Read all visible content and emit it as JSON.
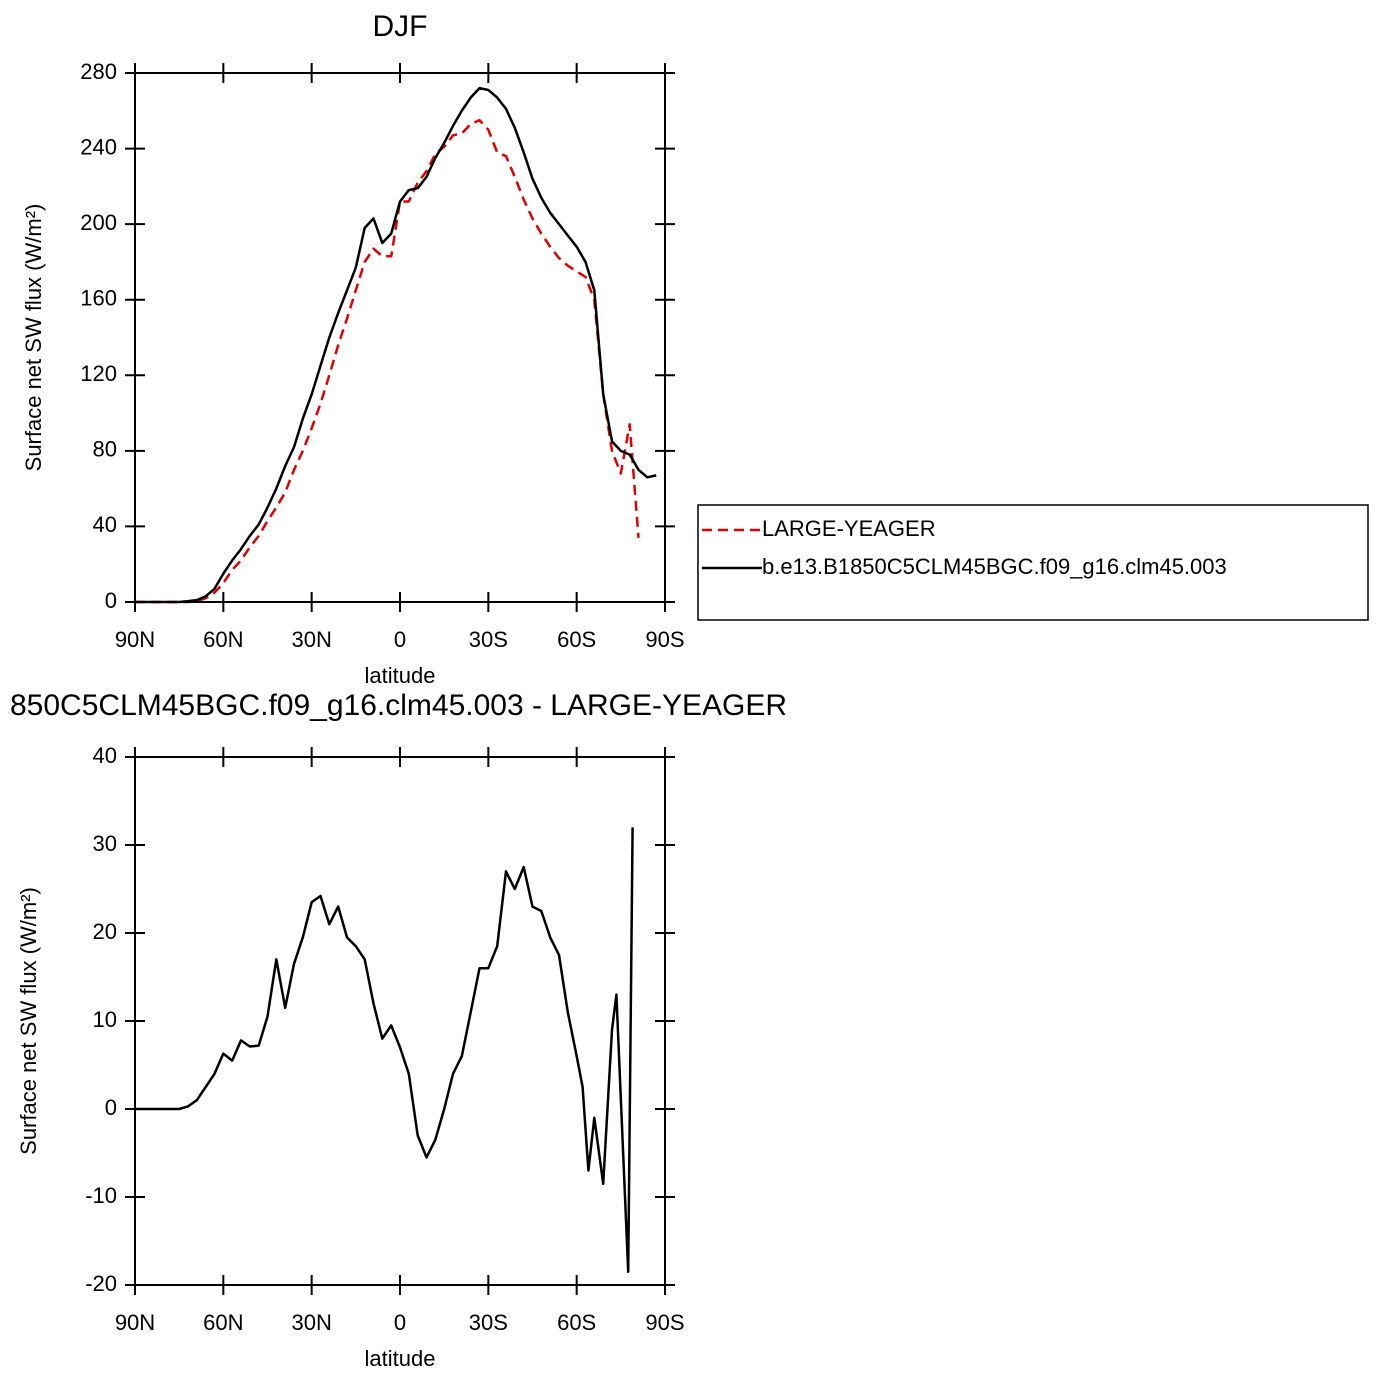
{
  "chart_data": [
    {
      "type": "line",
      "title": "DJF",
      "x_label": "latitude",
      "y_label": "Surface net SW flux (W/m²)",
      "x": [
        90,
        87,
        84,
        81,
        78,
        75,
        72,
        69,
        66,
        63,
        60,
        57,
        54,
        51,
        48,
        45,
        42,
        39,
        36,
        33,
        30,
        27,
        24,
        21,
        18,
        15,
        12,
        9,
        6,
        3,
        0,
        -3,
        -6,
        -9,
        -12,
        -15,
        -18,
        -21,
        -24,
        -27,
        -30,
        -33,
        -36,
        -39,
        -42,
        -45,
        -48,
        -51,
        -54,
        -57,
        -60,
        -63,
        -66,
        -69,
        -72,
        -75,
        -78,
        -81,
        -84,
        -87
      ],
      "series": [
        {
          "name": "LARGE-YEAGER",
          "color": "#e00000",
          "dash": true,
          "values": [
            0,
            0,
            0,
            0,
            0,
            0,
            0,
            0.5,
            2,
            5,
            10,
            17,
            22,
            29,
            35,
            43,
            50,
            58,
            70,
            80,
            92,
            105,
            120,
            136,
            150,
            165,
            180,
            187,
            183,
            183,
            212,
            212,
            222,
            228,
            237,
            241,
            247,
            248,
            253,
            255,
            250,
            238,
            236,
            225,
            213,
            203,
            195,
            188,
            182,
            178,
            175,
            172,
            160,
            110,
            80,
            68,
            94,
            34,
            null,
            null
          ]
        },
        {
          "name": "b.e13.B1850C5CLM45BGC.f09_g16.clm45.003",
          "color": "#000000",
          "dash": false,
          "values": [
            0,
            0,
            0,
            0,
            0,
            0,
            0.5,
            1,
            3,
            7,
            15,
            22,
            28,
            35,
            41,
            50,
            60,
            72,
            82,
            97,
            110,
            125,
            140,
            153,
            165,
            177,
            198,
            203,
            190,
            195,
            212,
            218,
            219,
            225,
            235,
            243,
            252,
            260,
            267,
            272,
            271,
            267,
            261,
            251,
            238,
            224,
            214,
            206,
            200,
            194,
            188,
            180,
            165,
            110,
            85,
            80,
            78,
            70,
            66,
            67
          ]
        }
      ],
      "xlim": [
        90,
        -90
      ],
      "xticks": [
        {
          "value": 90,
          "label": "90N"
        },
        {
          "value": 60,
          "label": "60N"
        },
        {
          "value": 30,
          "label": "30N"
        },
        0,
        {
          "value": -30,
          "label": "30S"
        },
        {
          "value": -60,
          "label": "60S"
        },
        {
          "value": -90,
          "label": "90S"
        }
      ],
      "ylim": [
        0,
        280
      ],
      "yticks": [
        0,
        40,
        80,
        120,
        160,
        200,
        240,
        280
      ],
      "legend": "outside-right"
    },
    {
      "type": "line",
      "title": "850C5CLM45BGC.f09_g16.clm45.003 - LARGE-YEAGER",
      "x_label": "latitude",
      "y_label": "Surface net SW flux (W/m²)",
      "x": [
        90,
        87,
        84,
        81,
        78,
        75,
        72,
        69,
        66,
        63,
        60,
        57,
        54,
        51,
        48,
        45,
        42,
        39,
        36,
        33,
        30,
        27,
        24,
        21,
        18,
        15,
        12,
        9,
        6,
        3,
        0,
        -3,
        -6,
        -9,
        -12,
        -15,
        -18,
        -21,
        -24,
        -27,
        -30,
        -33,
        -36,
        -39,
        -42,
        -45,
        -48,
        -51,
        -54,
        -57,
        -60,
        -62,
        -64,
        -66,
        -69,
        -72,
        -73.5,
        -77.5,
        -79
      ],
      "values": [
        0,
        0,
        0,
        0,
        0,
        0,
        0.3,
        1,
        2.5,
        4,
        6.3,
        5.5,
        7.8,
        7.1,
        7.2,
        10.5,
        17,
        11.5,
        16.5,
        19.5,
        23.5,
        24.2,
        21,
        23,
        19.5,
        18.5,
        17,
        12,
        8,
        9.5,
        7,
        4,
        -3,
        -5.5,
        -3.5,
        0,
        4,
        6,
        11,
        16,
        16,
        18.5,
        27,
        25,
        27.5,
        23,
        22.5,
        19.5,
        17.5,
        11,
        6,
        2.5,
        -7,
        -1,
        -8.5,
        9,
        13,
        -18.5,
        32
      ],
      "color": "#000000",
      "xlim": [
        90,
        -90
      ],
      "xticks": [
        {
          "value": 90,
          "label": "90N"
        },
        {
          "value": 60,
          "label": "60N"
        },
        {
          "value": 30,
          "label": "30N"
        },
        0,
        {
          "value": -30,
          "label": "30S"
        },
        {
          "value": -60,
          "label": "60S"
        },
        {
          "value": -90,
          "label": "90S"
        }
      ],
      "ylim": [
        -20,
        40
      ],
      "yticks": [
        -20,
        -10,
        0,
        10,
        20,
        30,
        40
      ]
    }
  ]
}
